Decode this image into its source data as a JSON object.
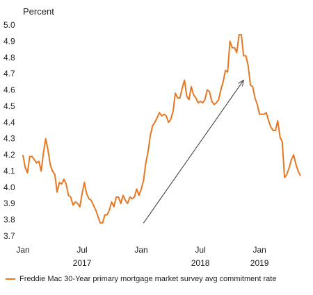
{
  "chart_data": {
    "type": "line",
    "ylabel": "Percent",
    "xlabel": "",
    "ylim": [
      3.7,
      5.0
    ],
    "yticks": [
      "5.0",
      "4.9",
      "4.8",
      "4.7",
      "4.6",
      "4.5",
      "4.4",
      "4.3",
      "4.2",
      "4.1",
      "4.0",
      "3.9",
      "3.8",
      "3.7"
    ],
    "xticks": [
      {
        "label": "Jan",
        "year": ""
      },
      {
        "label": "Jul",
        "year": "2017"
      },
      {
        "label": "Jan",
        "year": ""
      },
      {
        "label": "Jul",
        "year": "2018"
      },
      {
        "label": "Jan",
        "year": "2019"
      }
    ],
    "xtick_index": [
      0,
      26,
      52,
      78,
      104
    ],
    "grid": false,
    "legend_position": "bottom-left",
    "line_color": "#e87722",
    "arrow_color": "#333333",
    "arrow": {
      "from": {
        "week": 53,
        "value": 3.78
      },
      "to": {
        "week": 97,
        "value": 4.66
      }
    },
    "series": [
      {
        "name": "Freddie Mac 30-Year primary mortgage market survey avg commitment rate",
        "values": [
          4.2,
          4.12,
          4.09,
          4.19,
          4.19,
          4.17,
          4.15,
          4.16,
          4.1,
          4.21,
          4.3,
          4.23,
          4.14,
          4.1,
          4.08,
          3.97,
          4.03,
          4.02,
          4.05,
          4.02,
          3.95,
          3.94,
          3.89,
          3.91,
          3.9,
          3.88,
          3.96,
          4.03,
          3.96,
          3.93,
          3.92,
          3.89,
          3.86,
          3.82,
          3.78,
          3.78,
          3.83,
          3.83,
          3.86,
          3.91,
          3.88,
          3.94,
          3.94,
          3.9,
          3.95,
          3.92,
          3.9,
          3.94,
          3.93,
          3.94,
          3.99,
          3.95,
          3.99,
          4.04,
          4.15,
          4.22,
          4.32,
          4.38,
          4.4,
          4.43,
          4.46,
          4.44,
          4.45,
          4.44,
          4.4,
          4.42,
          4.47,
          4.58,
          4.55,
          4.55,
          4.61,
          4.66,
          4.56,
          4.54,
          4.62,
          4.57,
          4.55,
          4.52,
          4.53,
          4.52,
          4.54,
          4.6,
          4.59,
          4.53,
          4.51,
          4.52,
          4.54,
          4.6,
          4.65,
          4.72,
          4.71,
          4.9,
          4.86,
          4.86,
          4.83,
          4.94,
          4.94,
          4.81,
          4.81,
          4.75,
          4.63,
          4.62,
          4.55,
          4.51,
          4.45,
          4.45,
          4.45,
          4.46,
          4.41,
          4.37,
          4.35,
          4.35,
          4.41,
          4.31,
          4.28,
          4.06,
          4.08,
          4.12,
          4.17,
          4.2,
          4.14,
          4.1,
          4.07
        ]
      }
    ]
  }
}
